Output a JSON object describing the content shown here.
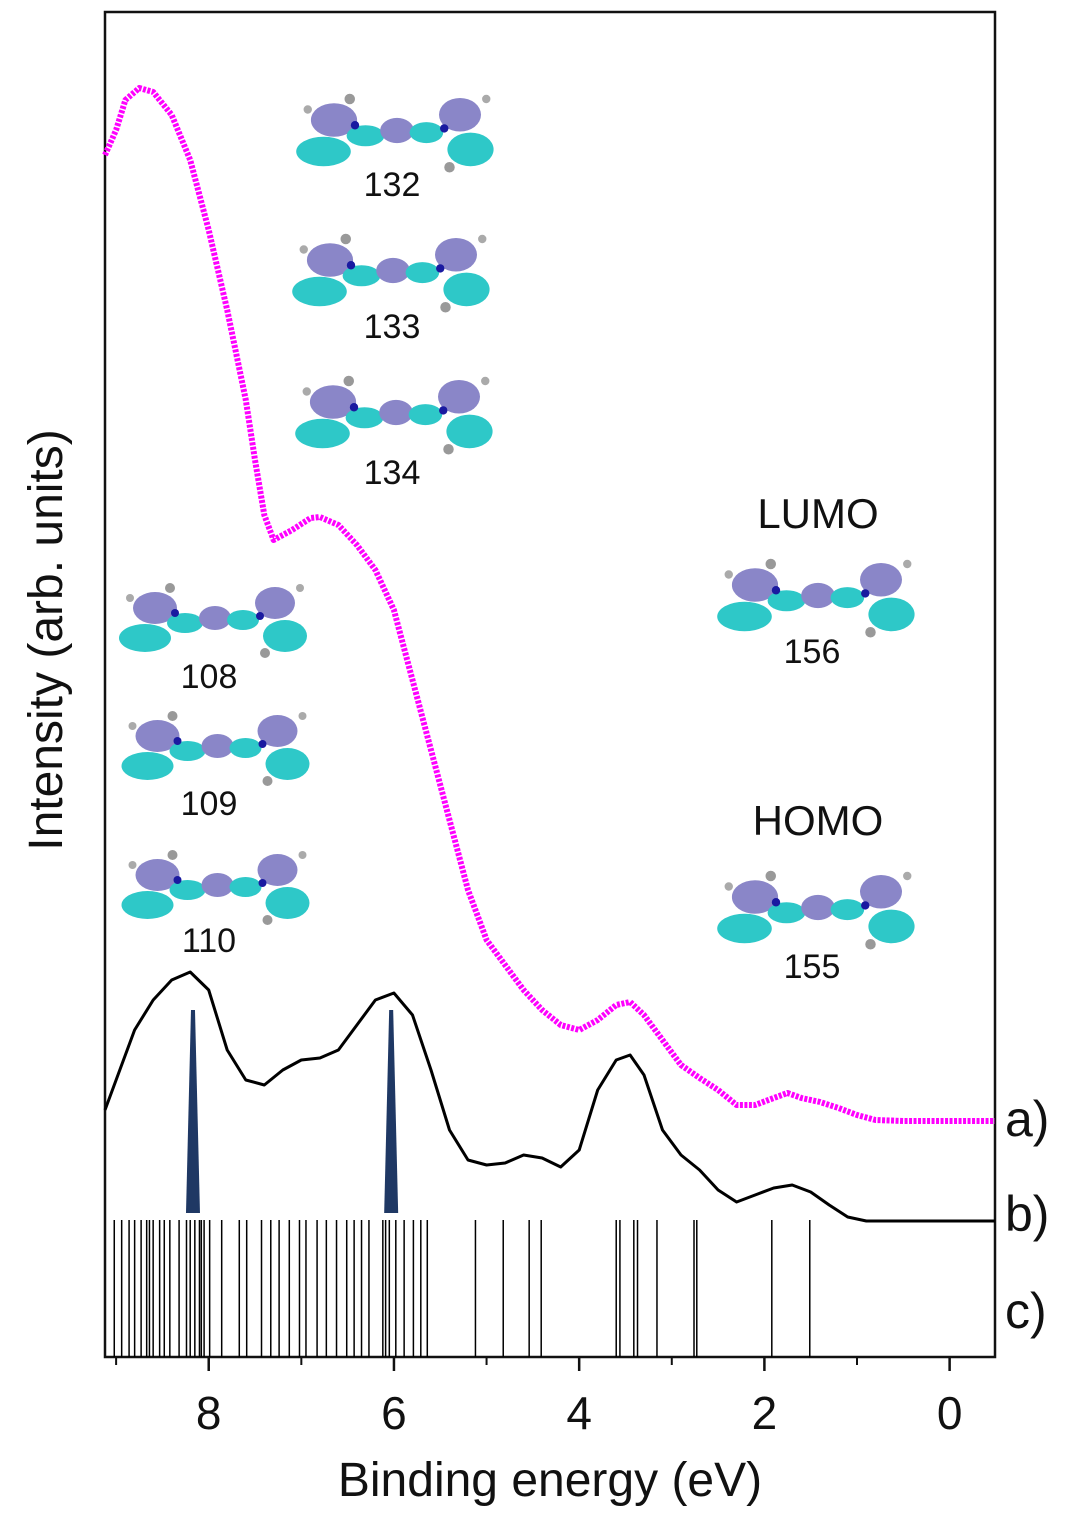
{
  "chart_data": {
    "type": "line",
    "xlabel": "Binding energy (eV)",
    "ylabel": "Intensity (arb. units)",
    "xlim": [
      9.12,
      -0.49
    ],
    "ylim": [
      0,
      1345
    ],
    "xticks": [
      0,
      2,
      4,
      6,
      8
    ],
    "xminor_ticks": [
      1,
      3,
      5,
      7,
      9
    ],
    "series": [
      {
        "name": "a)",
        "color": "#ff00ff",
        "x": [
          9.12,
          9.0,
          8.9,
          8.75,
          8.6,
          8.4,
          8.2,
          8.0,
          7.8,
          7.6,
          7.5,
          7.4,
          7.3,
          7.1,
          6.9,
          6.8,
          6.6,
          6.4,
          6.2,
          6.0,
          5.8,
          5.6,
          5.4,
          5.2,
          5.0,
          4.8,
          4.6,
          4.4,
          4.2,
          4.0,
          3.8,
          3.6,
          3.45,
          3.3,
          3.1,
          2.9,
          2.7,
          2.5,
          2.3,
          2.1,
          1.9,
          1.75,
          1.6,
          1.4,
          1.2,
          1.0,
          0.8,
          0.5,
          0,
          -0.49
        ],
        "values": [
          1202,
          1227,
          1257,
          1269,
          1265,
          1242,
          1197,
          1127,
          1047,
          957,
          897,
          842,
          817,
          827,
          839,
          840,
          832,
          812,
          787,
          747,
          677,
          607,
          537,
          467,
          417,
          392,
          367,
          347,
          332,
          327,
          337,
          352,
          355,
          342,
          317,
          292,
          279,
          267,
          252,
          252,
          259,
          264,
          259,
          255,
          249,
          242,
          237,
          236,
          236,
          236
        ]
      },
      {
        "name": "b)",
        "color": "#000000",
        "x": [
          9.12,
          9.0,
          8.8,
          8.6,
          8.4,
          8.2,
          8.0,
          7.8,
          7.6,
          7.4,
          7.2,
          7.0,
          6.8,
          6.6,
          6.4,
          6.2,
          6.0,
          5.8,
          5.6,
          5.4,
          5.2,
          5.0,
          4.8,
          4.6,
          4.4,
          4.2,
          4.0,
          3.8,
          3.6,
          3.45,
          3.3,
          3.1,
          2.9,
          2.7,
          2.5,
          2.3,
          2.1,
          1.9,
          1.7,
          1.5,
          1.3,
          1.1,
          0.9,
          0.5,
          0,
          -0.49
        ],
        "values": [
          247,
          277,
          327,
          357,
          377,
          385,
          367,
          307,
          277,
          272,
          287,
          297,
          299,
          307,
          332,
          357,
          364,
          342,
          287,
          227,
          197,
          192,
          194,
          202,
          199,
          190,
          207,
          267,
          297,
          302,
          282,
          227,
          202,
          187,
          167,
          155,
          162,
          169,
          172,
          165,
          152,
          140,
          136,
          136,
          136,
          136
        ]
      },
      {
        "name": "c)",
        "color": "#000000",
        "x": [
          9.02,
          8.94,
          8.86,
          8.8,
          8.73,
          8.67,
          8.64,
          8.6,
          8.53,
          8.48,
          8.42,
          8.32,
          8.24,
          8.2,
          8.15,
          8.1,
          8.08,
          8.05,
          7.99,
          7.86,
          7.67,
          7.59,
          7.43,
          7.33,
          7.24,
          7.13,
          7.02,
          6.95,
          6.83,
          6.73,
          6.62,
          6.51,
          6.43,
          6.35,
          6.27,
          6.12,
          6.09,
          6.05,
          5.98,
          5.89,
          5.79,
          5.71,
          5.64,
          5.12,
          4.82,
          4.54,
          4.41,
          3.6,
          3.56,
          3.41,
          3.37,
          3.16,
          2.76,
          2.73,
          1.92,
          1.51
        ],
        "values": [
          137,
          137,
          137,
          137,
          137,
          137,
          137,
          137,
          137,
          137,
          137,
          137,
          137,
          137,
          137,
          137,
          137,
          137,
          137,
          137,
          137,
          137,
          137,
          137,
          137,
          137,
          137,
          137,
          137,
          137,
          137,
          137,
          137,
          137,
          137,
          137,
          137,
          137,
          137,
          137,
          137,
          137,
          137,
          137,
          137,
          137,
          137,
          137,
          137,
          137,
          137,
          137,
          137,
          137,
          137,
          137
        ]
      }
    ],
    "peak_markers": {
      "color": "#1f3864",
      "x": [
        8.17,
        6.03
      ],
      "values": [
        347,
        347
      ],
      "base": 144
    },
    "annotations": [
      "132",
      "133",
      "134",
      "108",
      "109",
      "110",
      "LUMO",
      "156",
      "HOMO",
      "155"
    ]
  }
}
